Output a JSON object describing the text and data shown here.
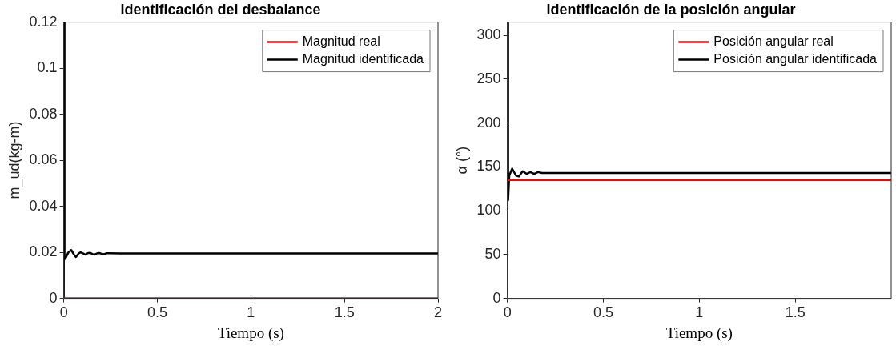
{
  "chart_data": [
    {
      "type": "line",
      "title": "Identificación del desbalance",
      "xlabel": "Tiempo (s)",
      "ylabel": "m_ud(kg-m)",
      "xlim": [
        0,
        2
      ],
      "xticks": [
        0,
        0.5,
        1,
        1.5,
        2
      ],
      "ylim": [
        0,
        0.12
      ],
      "yticks": [
        0,
        0.02,
        0.04,
        0.06,
        0.08,
        0.1,
        0.12
      ],
      "grid": false,
      "legend": "top right",
      "marker": "none",
      "line_style": "solid",
      "series": [
        {
          "name": "Magnitud real",
          "color": "#ff0000",
          "x": [
            0,
            2
          ],
          "values": [
            0,
            0
          ]
        },
        {
          "name": "Magnitud identificada",
          "color": "#000000",
          "x": [
            0,
            0.002,
            0.004,
            0.01,
            0.025,
            0.04,
            0.055,
            0.065,
            0.08,
            0.09,
            0.105,
            0.115,
            0.13,
            0.14,
            0.155,
            0.165,
            0.18,
            0.19,
            0.205,
            0.215,
            0.23,
            0.24,
            0.3,
            2
          ],
          "values": [
            0,
            0.12,
            0.017,
            0.0175,
            0.02,
            0.021,
            0.019,
            0.018,
            0.0195,
            0.02,
            0.0195,
            0.019,
            0.0197,
            0.0198,
            0.0192,
            0.019,
            0.0196,
            0.0197,
            0.0193,
            0.0192,
            0.0196,
            0.0196,
            0.0195,
            0.0195
          ]
        }
      ]
    },
    {
      "type": "line",
      "title": "Identificación de la posición angular",
      "xlabel": "Tiempo (s)",
      "ylabel": "α (°)",
      "xlim": [
        0,
        2
      ],
      "xticks": [
        0,
        0.5,
        1,
        1.5
      ],
      "ylim": [
        0,
        315
      ],
      "yticks": [
        0,
        50,
        100,
        150,
        200,
        250,
        300
      ],
      "grid": false,
      "legend": "top right",
      "marker": "none",
      "line_style": "solid",
      "series": [
        {
          "name": "Posición angular real",
          "color": "#ff0000",
          "x": [
            0,
            2
          ],
          "values": [
            135,
            135
          ]
        },
        {
          "name": "Posición angular identificada",
          "color": "#000000",
          "x": [
            0,
            0.002,
            0.004,
            0.01,
            0.025,
            0.045,
            0.06,
            0.08,
            0.1,
            0.12,
            0.14,
            0.16,
            0.18,
            0.2,
            0.3,
            2
          ],
          "values": [
            0,
            315,
            112,
            140,
            148,
            140,
            139,
            145,
            142,
            144,
            142,
            144,
            143,
            143,
            143,
            143
          ]
        }
      ]
    }
  ]
}
